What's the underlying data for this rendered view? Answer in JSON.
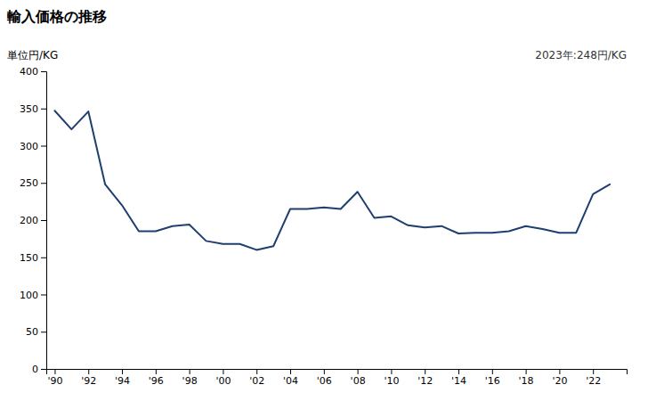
{
  "chart_data": {
    "type": "line",
    "title": "輸入価格の推移",
    "ylabel": "単位円/KG",
    "annotation": "2023年:248円/KG",
    "color": "#1f3f6e",
    "x": [
      1990,
      1991,
      1992,
      1993,
      1994,
      1995,
      1996,
      1997,
      1998,
      1999,
      2000,
      2001,
      2002,
      2003,
      2004,
      2005,
      2006,
      2007,
      2008,
      2009,
      2010,
      2011,
      2012,
      2013,
      2014,
      2015,
      2016,
      2017,
      2018,
      2019,
      2020,
      2021,
      2022,
      2023
    ],
    "values": [
      347,
      322,
      346,
      248,
      220,
      185,
      185,
      192,
      194,
      172,
      168,
      168,
      160,
      165,
      215,
      215,
      217,
      215,
      238,
      203,
      205,
      193,
      190,
      192,
      182,
      183,
      183,
      185,
      192,
      188,
      183,
      183,
      235,
      248
    ],
    "xlim": [
      1989.5,
      2024.0
    ],
    "ylim": [
      0,
      400
    ],
    "yticks": [
      0,
      50,
      100,
      150,
      200,
      250,
      300,
      350,
      400
    ],
    "xticks": [
      {
        "value": 1990,
        "label": "'90"
      },
      {
        "value": 1992,
        "label": "'92"
      },
      {
        "value": 1994,
        "label": "'94"
      },
      {
        "value": 1996,
        "label": "'96"
      },
      {
        "value": 1998,
        "label": "'98"
      },
      {
        "value": 2000,
        "label": "'00"
      },
      {
        "value": 2002,
        "label": "'02"
      },
      {
        "value": 2004,
        "label": "'04"
      },
      {
        "value": 2006,
        "label": "'06"
      },
      {
        "value": 2008,
        "label": "'08"
      },
      {
        "value": 2010,
        "label": "'10"
      },
      {
        "value": 2012,
        "label": "'12"
      },
      {
        "value": 2014,
        "label": "'14"
      },
      {
        "value": 2016,
        "label": "'16"
      },
      {
        "value": 2018,
        "label": "'18"
      },
      {
        "value": 2020,
        "label": "'20"
      },
      {
        "value": 2022,
        "label": "'22"
      }
    ],
    "grid": false
  }
}
